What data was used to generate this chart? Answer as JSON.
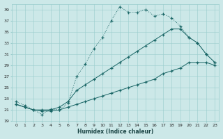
{
  "xlabel": "Humidex (Indice chaleur)",
  "xlim": [
    -0.5,
    23.5
  ],
  "ylim": [
    19,
    40
  ],
  "xticks": [
    0,
    1,
    2,
    3,
    4,
    5,
    6,
    7,
    8,
    9,
    10,
    11,
    12,
    13,
    14,
    15,
    16,
    17,
    18,
    19,
    20,
    21,
    22,
    23
  ],
  "yticks": [
    19,
    21,
    23,
    25,
    27,
    29,
    31,
    33,
    35,
    37,
    39
  ],
  "bg_color": "#cce8e8",
  "grid_color": "#99cccc",
  "line_color": "#1a6666",
  "line1_x": [
    0,
    1,
    2,
    3,
    4,
    5,
    6,
    7,
    8,
    9,
    10,
    11,
    12,
    13,
    14,
    15,
    16,
    17,
    18,
    19,
    20,
    21,
    22,
    23
  ],
  "line1_y": [
    22.5,
    21.8,
    21.0,
    20.2,
    21.2,
    21.0,
    22.2,
    27.0,
    29.2,
    32.0,
    34.0,
    37.0,
    39.5,
    38.5,
    38.5,
    39.0,
    37.8,
    38.2,
    37.5,
    36.0,
    34.0,
    33.0,
    31.0,
    29.5
  ],
  "line2_x": [
    0,
    1,
    2,
    3,
    4,
    5,
    6,
    7,
    8,
    9,
    10,
    11,
    12,
    13,
    14,
    15,
    16,
    17,
    18,
    19,
    20,
    21,
    22,
    23
  ],
  "line2_y": [
    22.0,
    21.5,
    21.0,
    21.0,
    21.0,
    21.5,
    22.5,
    24.5,
    25.5,
    26.5,
    27.5,
    28.5,
    29.5,
    30.5,
    31.5,
    32.5,
    33.5,
    34.5,
    35.5,
    35.5,
    34.0,
    33.0,
    31.0,
    29.5
  ],
  "line3_x": [
    0,
    1,
    2,
    3,
    4,
    5,
    6,
    7,
    8,
    9,
    10,
    11,
    12,
    13,
    14,
    15,
    16,
    17,
    18,
    19,
    20,
    21,
    22,
    23
  ],
  "line3_y": [
    22.0,
    21.5,
    21.0,
    20.8,
    20.8,
    21.0,
    21.5,
    22.0,
    22.5,
    23.0,
    23.5,
    24.0,
    24.5,
    25.0,
    25.5,
    26.0,
    26.5,
    27.5,
    28.0,
    28.5,
    29.5,
    29.5,
    29.5,
    29.0
  ]
}
